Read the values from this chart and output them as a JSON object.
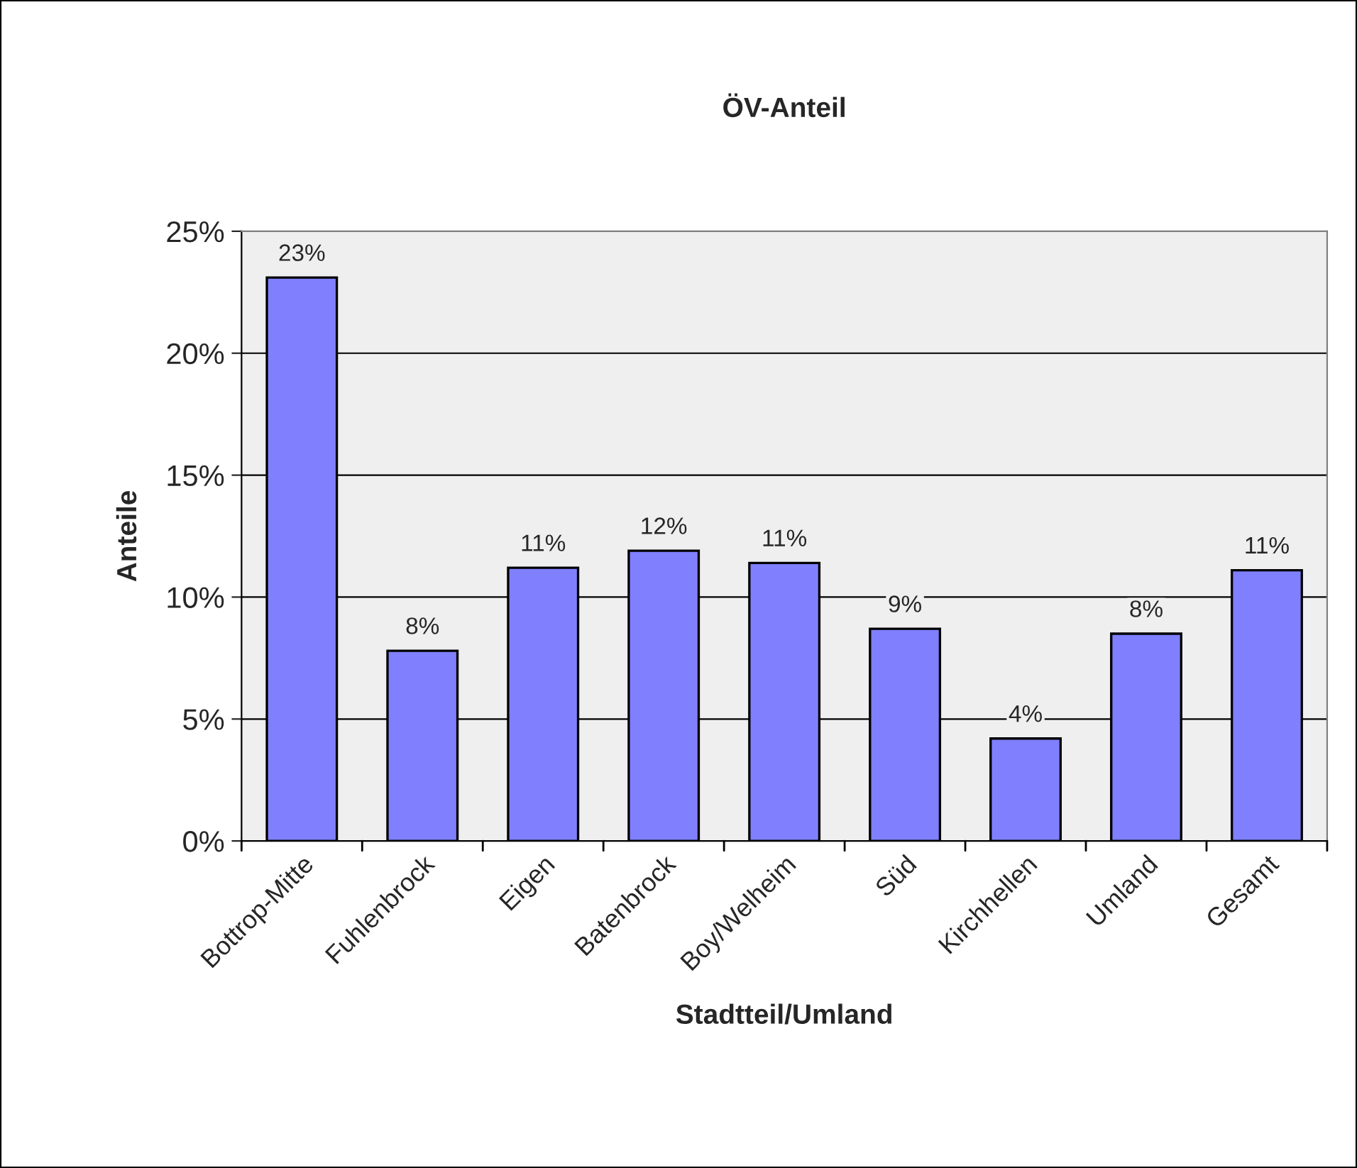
{
  "chart_data": {
    "type": "bar",
    "title": "ÖV-Anteil",
    "xlabel": "Stadtteil/Umland",
    "ylabel": "Anteile",
    "categories": [
      "Bottrop-Mitte",
      "Fuhlenbrock",
      "Eigen",
      "Batenbrock",
      "Boy/Welheim",
      "Süd",
      "Kirchhellen",
      "Umland",
      "Gesamt"
    ],
    "series": [
      {
        "color": "#8080ff",
        "values": [
          0.231,
          0.078,
          0.112,
          0.119,
          0.114,
          0.087,
          0.042,
          0.085,
          0.111
        ],
        "value_labels": [
          "23%",
          "8%",
          "11%",
          "12%",
          "11%",
          "9%",
          "4%",
          "8%",
          "11%"
        ]
      }
    ],
    "ylim": [
      0,
      0.25
    ],
    "yticks": [
      {
        "value": 0,
        "label": "0%"
      },
      {
        "value": 0.05,
        "label": "5%"
      },
      {
        "value": 0.1,
        "label": "10%"
      },
      {
        "value": 0.15,
        "label": "15%"
      },
      {
        "value": 0.2,
        "label": "20%"
      },
      {
        "value": 0.25,
        "label": "25%"
      }
    ],
    "grid": "y",
    "legend": false
  }
}
